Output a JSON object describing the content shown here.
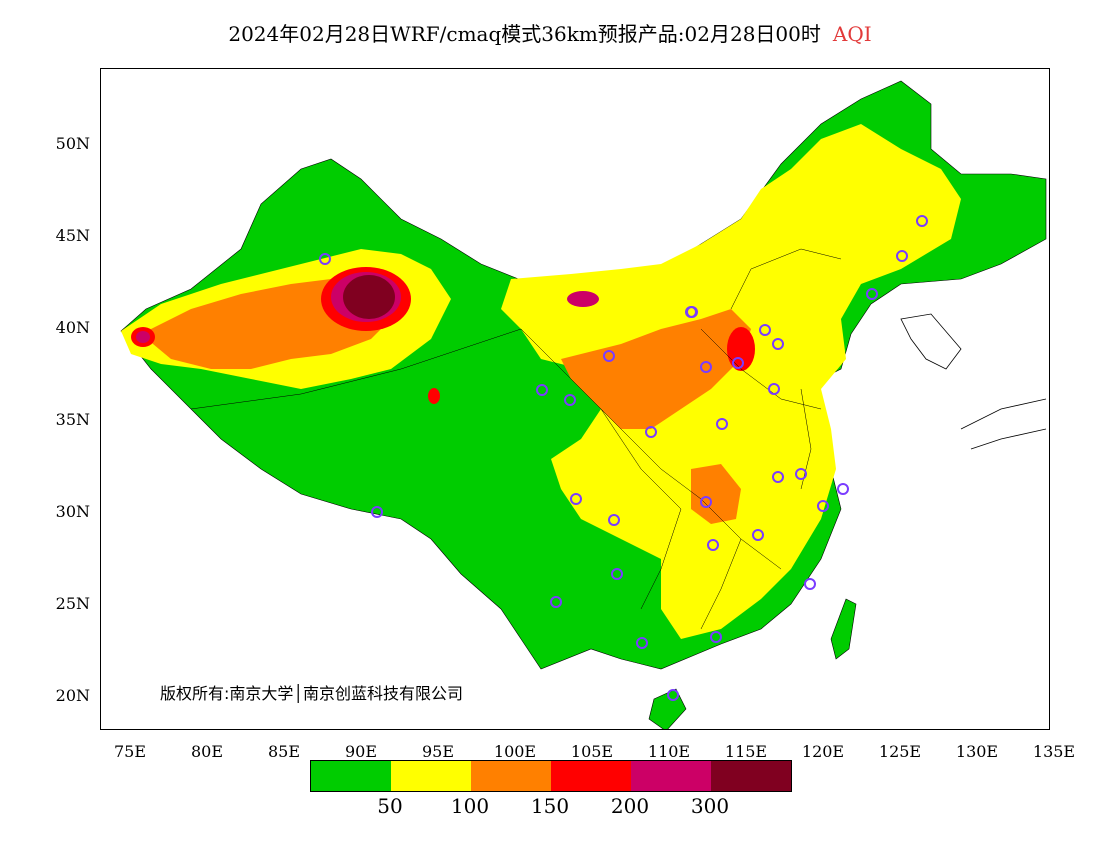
{
  "title": {
    "main": "2024年02月28日WRF/cmaq模式36km预报产品:02月28日00时",
    "tag": "AQI",
    "tag_color": "#e23a3a"
  },
  "axes": {
    "lat_labels": [
      "50N",
      "45N",
      "40N",
      "35N",
      "30N",
      "25N",
      "20N"
    ],
    "lon_labels": [
      "75E",
      "80E",
      "85E",
      "90E",
      "95E",
      "100E",
      "105E",
      "110E",
      "115E",
      "120E",
      "125E",
      "130E",
      "135E"
    ],
    "lat_range": [
      18,
      54
    ],
    "lon_range": [
      73,
      135
    ]
  },
  "copyright": "版权所有:南京大学│南京创蓝科技有限公司",
  "legend": {
    "colors": [
      "#00cc00",
      "#ffff00",
      "#ff8000",
      "#ff0000",
      "#cc0066",
      "#800020"
    ],
    "labels": [
      "50",
      "100",
      "150",
      "200",
      "300"
    ]
  },
  "cities_marker_color": "#7a3cff"
}
